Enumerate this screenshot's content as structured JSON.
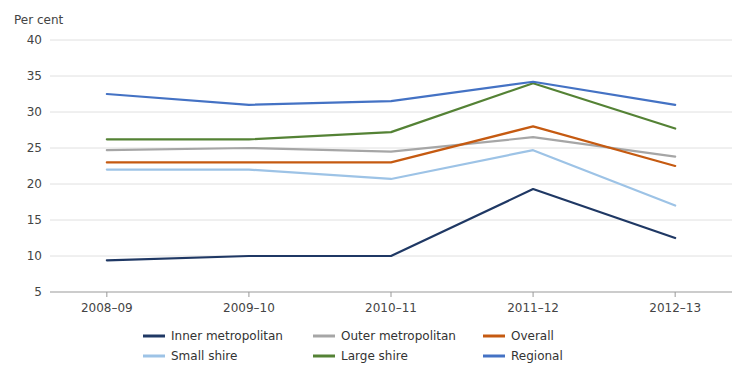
{
  "chart_data": {
    "type": "line",
    "y_label": "Per cent",
    "categories": [
      "2008–09",
      "2009–10",
      "2010–11",
      "2011–12",
      "2012–13"
    ],
    "series": [
      {
        "name": "Inner metropolitan",
        "color": "#1f3864",
        "values": [
          9.4,
          10.0,
          10.0,
          19.3,
          12.5
        ]
      },
      {
        "name": "Outer metropolitan",
        "color": "#a6a6a6",
        "values": [
          24.7,
          25.0,
          24.5,
          26.5,
          23.8
        ]
      },
      {
        "name": "Overall",
        "color": "#c55a11",
        "values": [
          23.0,
          23.0,
          23.0,
          28.0,
          22.5
        ]
      },
      {
        "name": "Small shire",
        "color": "#9dc3e6",
        "values": [
          22.0,
          22.0,
          20.7,
          24.7,
          17.0
        ]
      },
      {
        "name": "Large shire",
        "color": "#548235",
        "values": [
          26.2,
          26.2,
          27.2,
          34.0,
          27.7
        ]
      },
      {
        "name": "Regional",
        "color": "#4472c4",
        "values": [
          32.5,
          31.0,
          31.5,
          34.2,
          31.0
        ]
      }
    ],
    "ylim": [
      5,
      40
    ],
    "yticks": [
      5,
      10,
      15,
      20,
      25,
      30,
      35,
      40
    ],
    "grid": true,
    "legend": "bottom"
  }
}
